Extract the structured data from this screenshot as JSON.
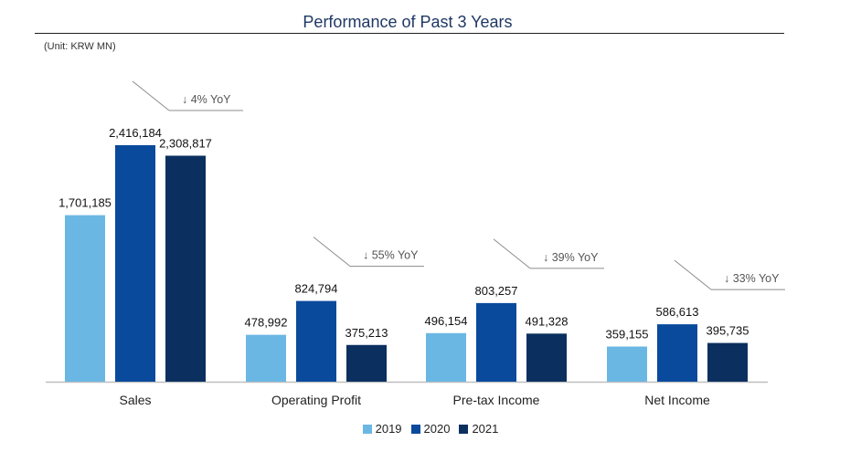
{
  "chart_data": {
    "type": "bar",
    "title": "Performance of Past 3 Years",
    "subtitle": "(Unit: KRW MN)",
    "xlabel": "",
    "ylabel": "",
    "categories": [
      "Sales",
      "Operating Profit",
      "Pre-tax Income",
      "Net Income"
    ],
    "series": [
      {
        "name": "2019",
        "color": "#6bb7e4",
        "values": [
          1701185,
          478992,
          496154,
          359155
        ],
        "labels": [
          "1,701,185",
          "478,992",
          "496,154",
          "359,155"
        ]
      },
      {
        "name": "2020",
        "color": "#0a4a9c",
        "values": [
          2416184,
          824794,
          803257,
          586613
        ],
        "labels": [
          "2,416,184",
          "824,794",
          "803,257",
          "586,613"
        ]
      },
      {
        "name": "2021",
        "color": "#0b3060",
        "values": [
          2308817,
          375213,
          491328,
          395735
        ],
        "labels": [
          "2,308,817",
          "375,213",
          "491,328",
          "395,735"
        ]
      }
    ],
    "annotations": [
      "↓ 4% YoY",
      "↓ 55% YoY",
      "↓ 39% YoY",
      "↓ 33% YoY"
    ],
    "ylim": [
      0,
      2416184
    ],
    "grid": false,
    "legend_position": "bottom"
  }
}
